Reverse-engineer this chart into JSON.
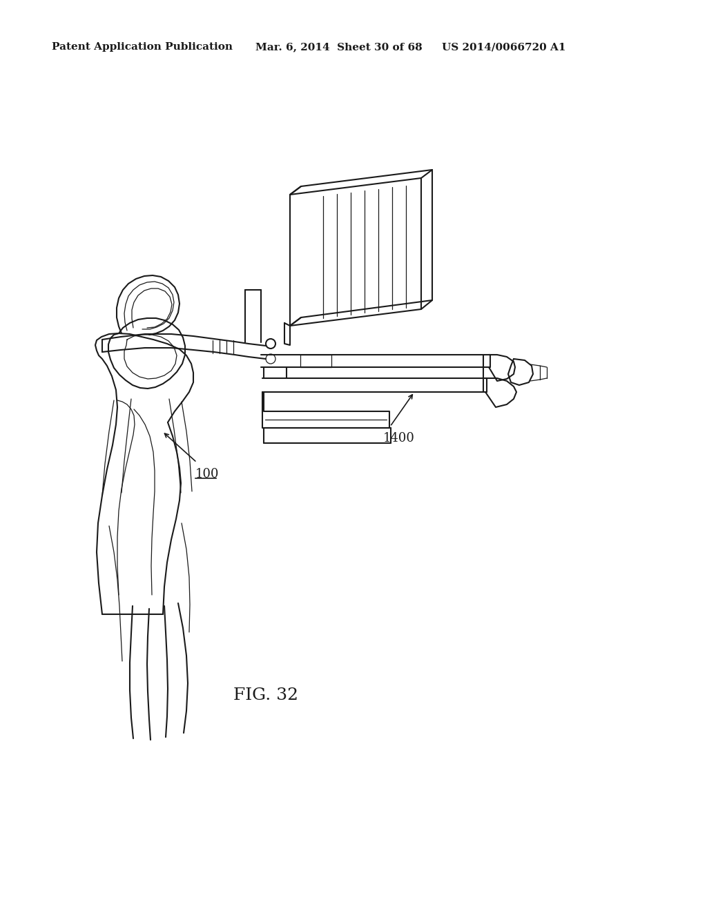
{
  "background_color": "#ffffff",
  "line_color": "#1a1a1a",
  "header_left": "Patent Application Publication",
  "header_center": "Mar. 6, 2014  Sheet 30 of 68",
  "header_right": "US 2014/0066720 A1",
  "fig_label": "FIG. 32",
  "label_100": "100",
  "label_1400": "1400",
  "header_fontsize": 11,
  "fig_label_fontsize": 18
}
